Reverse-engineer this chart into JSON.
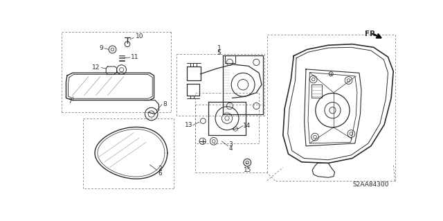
{
  "bg_color": "#ffffff",
  "line_color": "#2a2a2a",
  "dash_color": "#666666",
  "diagram_code": "S2AA84300",
  "fig_w": 6.4,
  "fig_h": 3.19,
  "xlim": [
    0,
    640
  ],
  "ylim": [
    0,
    319
  ]
}
